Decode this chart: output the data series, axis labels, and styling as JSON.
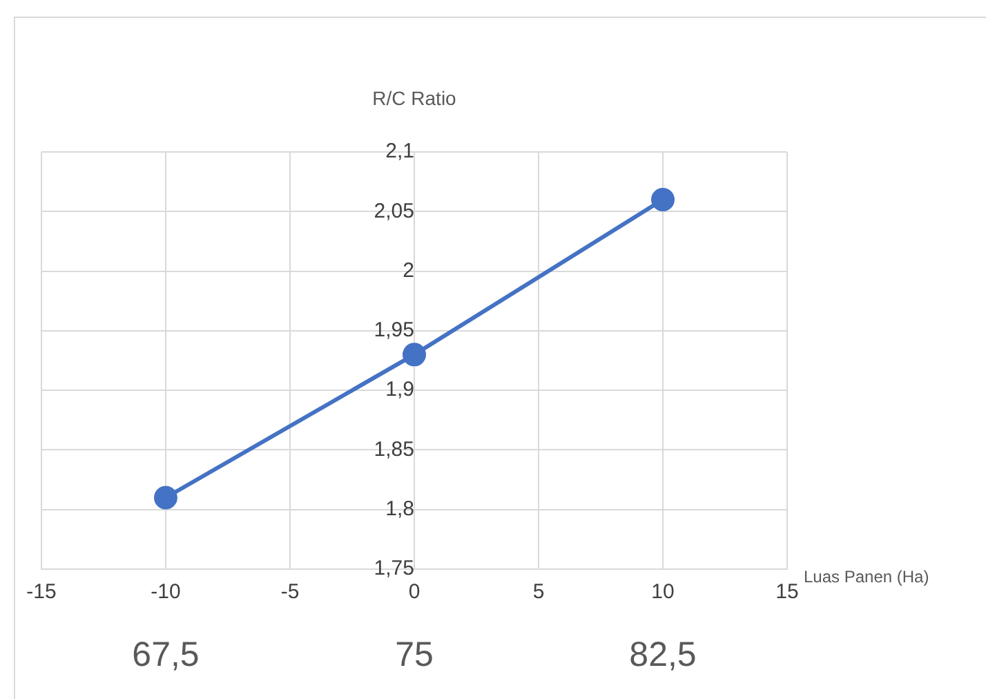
{
  "chart_data": {
    "type": "line",
    "title": "R/C Ratio",
    "xlabel": "Luas Panen (Ha)",
    "x": [
      -10,
      0,
      10
    ],
    "series": [
      {
        "color": "#4472c4",
        "values": [
          1.81,
          1.93,
          2.06
        ]
      }
    ],
    "xlim": [
      -15,
      15
    ],
    "xticks": [
      -15,
      -10,
      -5,
      0,
      5,
      10,
      15
    ],
    "ylim": [
      1.75,
      2.1
    ],
    "yticks": [
      {
        "value": 1.75,
        "label": "1,75"
      },
      {
        "value": 1.8,
        "label": "1,8"
      },
      {
        "value": 1.85,
        "label": "1,85"
      },
      {
        "value": 1.9,
        "label": "1,9"
      },
      {
        "value": 1.95,
        "label": "1,95"
      },
      {
        "value": 2,
        "label": "2"
      },
      {
        "value": 2.05,
        "label": "2,05"
      },
      {
        "value": 2.1,
        "label": "2,1"
      }
    ],
    "x2lim": [
      63.75,
      86.25
    ],
    "x2ticks": [
      {
        "value": 67.5,
        "label": "67,5"
      },
      {
        "value": 75,
        "label": "75"
      },
      {
        "value": 82.5,
        "label": "82,5"
      }
    ],
    "grid": true,
    "legend": false,
    "marker": "circle",
    "line_style": "solid"
  }
}
